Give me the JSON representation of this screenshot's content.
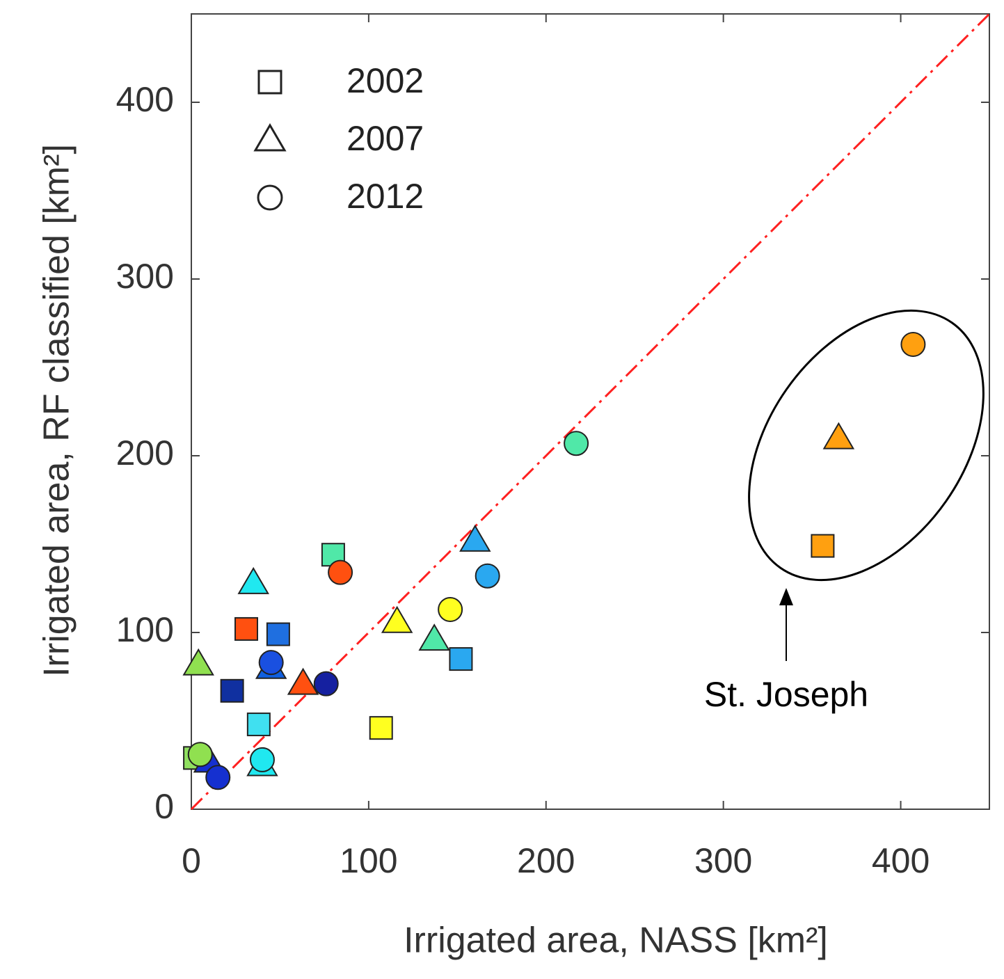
{
  "chart_data": {
    "type": "scatter",
    "xlabel": "Irrigated area, NASS [km²]",
    "ylabel": "Irrigated area, RF classified [km²]",
    "xlim": [
      0,
      450
    ],
    "ylim": [
      0,
      450
    ],
    "xticks": [
      0,
      100,
      200,
      300,
      400
    ],
    "yticks": [
      0,
      100,
      200,
      300,
      400
    ],
    "legend_position": "upper left",
    "reference_line_color": "#ff2020",
    "annotation": "St. Joseph",
    "series": [
      {
        "name": "2002",
        "marker": "square",
        "color": "#ffffff",
        "x": [
          2,
          23,
          31,
          49,
          38,
          80,
          107,
          152,
          356
        ],
        "y": [
          29,
          67,
          102,
          99,
          48,
          144,
          46,
          85,
          149
        ],
        "colors": [
          "#90e060",
          "#1030a0",
          "#ff5010",
          "#1f6fe0",
          "#40e0f0",
          "#50e8a8",
          "#ffff20",
          "#2aa8f0",
          "#ffa010"
        ]
      },
      {
        "name": "2007",
        "marker": "triangle",
        "color": "#ffffff",
        "x": [
          4,
          35,
          45,
          63,
          116,
          137,
          160,
          365,
          40,
          10
        ],
        "y": [
          82,
          128,
          80,
          71,
          106,
          96,
          152,
          210,
          25,
          27
        ],
        "colors": [
          "#90e050",
          "#20e8f0",
          "#1060e0",
          "#ff5010",
          "#ffff20",
          "#50e8a8",
          "#2aa8f0",
          "#ffa010",
          "#20e8f0",
          "#1530d0"
        ]
      },
      {
        "name": "2012",
        "marker": "circle",
        "color": "#ffffff",
        "x": [
          5,
          15,
          45,
          76,
          84,
          40,
          146,
          167,
          217,
          407
        ],
        "y": [
          31,
          18,
          83,
          71,
          134,
          28,
          113,
          132,
          207,
          263
        ],
        "colors": [
          "#90e050",
          "#1530d0",
          "#1a50e0",
          "#1520a0",
          "#ff5010",
          "#20e8f0",
          "#ffff20",
          "#2aa8f0",
          "#50e8a8",
          "#ffa010"
        ]
      }
    ]
  }
}
